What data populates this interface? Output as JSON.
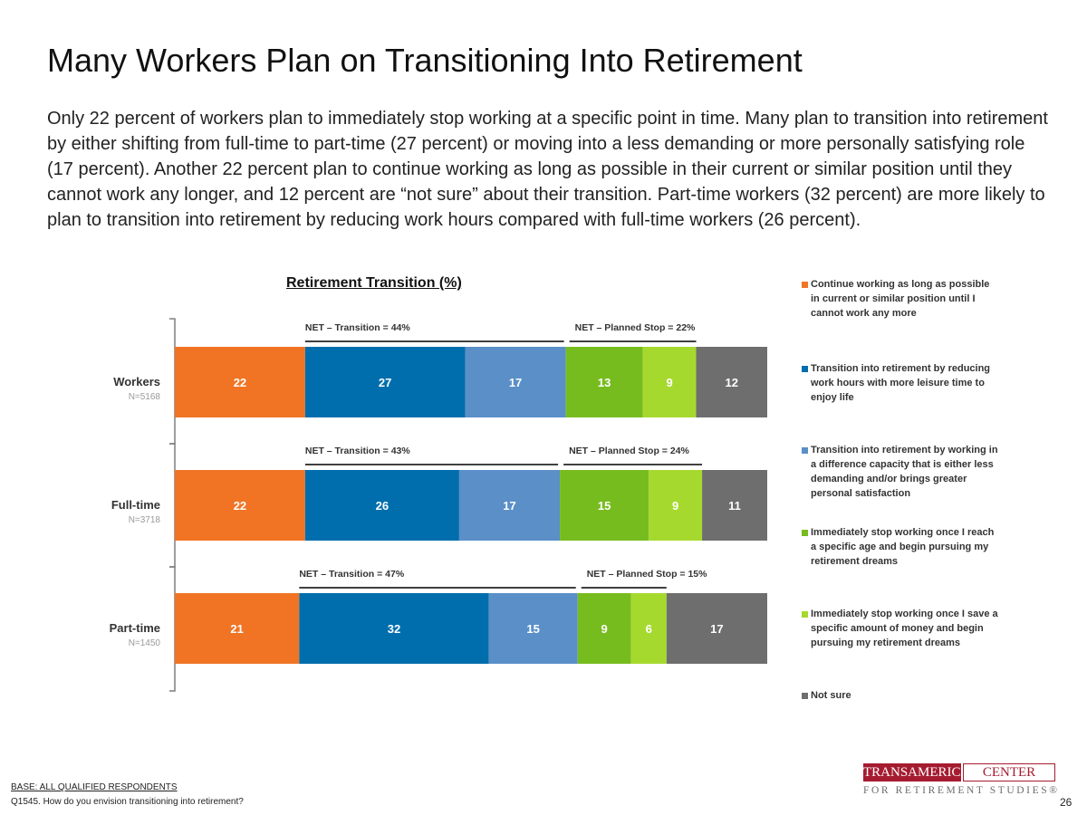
{
  "page": {
    "title": "Many Workers Plan on Transitioning Into Retirement",
    "body": "Only 22 percent of workers plan to immediately stop working at a specific point in time. Many plan to transition into retirement by either shifting from full-time to part-time (27 percent) or moving into a less demanding or more personally satisfying role (17 percent). Another 22 percent plan to continue working as long as possible in their current or similar position until they cannot work any longer, and 12 percent are “not sure” about their transition. Part-time workers (32 percent) are more likely to plan to transition into retirement by reducing work hours compared with full-time workers (26 percent).",
    "footer_base": "BASE: ALL QUALIFIED RESPONDENTS",
    "footer_question": "Q1545. How do you envision transitioning into retirement?",
    "page_number": "26",
    "logo": {
      "name_left": "TRANSAMERICA",
      "name_right": "CENTER",
      "subtitle": "FOR RETIREMENT STUDIES®"
    }
  },
  "chart_data": {
    "type": "bar",
    "orientation": "horizontal-stacked",
    "title": "Retirement Transition (%)",
    "categories": [
      "Workers",
      "Full-time",
      "Part-time"
    ],
    "category_sublabels": [
      "N=5168",
      "N=3718",
      "N=1450"
    ],
    "series": [
      {
        "name": "Continue working as long as possible in current or similar position until I cannot work any more",
        "color": "#f07424",
        "values": [
          22,
          22,
          21
        ]
      },
      {
        "name": "Transition into retirement by reducing work hours with more leisure time to enjoy life",
        "color": "#006ead",
        "values": [
          27,
          26,
          32
        ]
      },
      {
        "name": "Transition into retirement by working in a difference capacity that is either less demanding and/or brings greater personal satisfaction",
        "color": "#5a8fc8",
        "values": [
          17,
          17,
          15
        ]
      },
      {
        "name": "Immediately stop working once I reach a specific age and begin pursuing my retirement dreams",
        "color": "#77bc1f",
        "values": [
          13,
          15,
          9
        ]
      },
      {
        "name": "Immediately stop working once I save a specific amount of money and begin pursuing my retirement dreams",
        "color": "#a6d92e",
        "values": [
          9,
          9,
          6
        ]
      },
      {
        "name": "Not sure",
        "color": "#6e6e6e",
        "values": [
          12,
          11,
          17
        ]
      }
    ],
    "net_labels": [
      {
        "transition": "NET – Transition = 44%",
        "planned_stop": "NET – Planned Stop = 22%"
      },
      {
        "transition": "NET – Transition = 43%",
        "planned_stop": "NET – Planned Stop = 24%"
      },
      {
        "transition": "NET – Transition = 47%",
        "planned_stop": "NET – Planned Stop = 15%"
      }
    ],
    "xlim": [
      0,
      100
    ],
    "legend_position": "right"
  }
}
